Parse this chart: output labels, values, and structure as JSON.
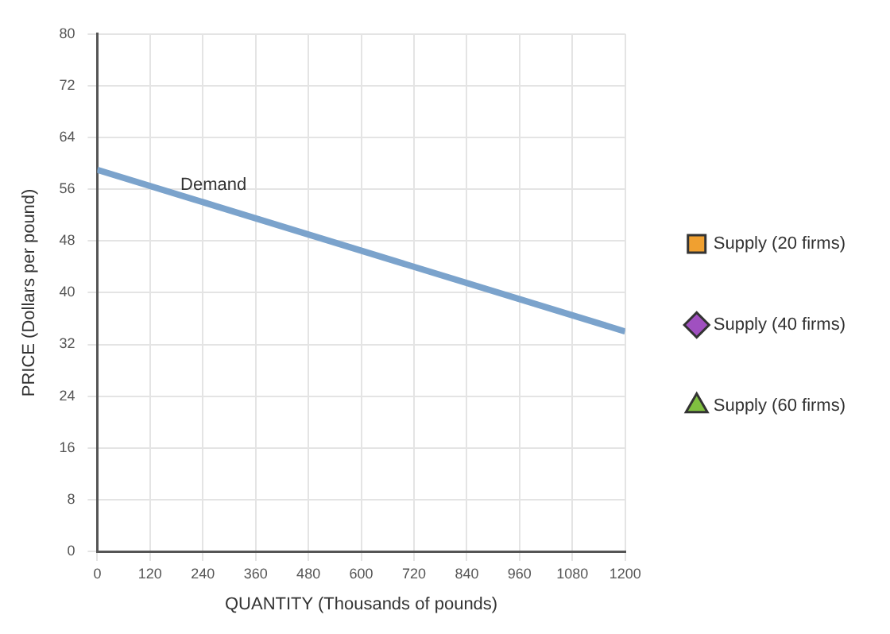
{
  "chart_data": {
    "type": "line",
    "xlabel": "QUANTITY (Thousands of pounds)",
    "ylabel": "PRICE (Dollars per pound)",
    "xlim": [
      0,
      1200
    ],
    "xticks": [
      0,
      120,
      240,
      360,
      480,
      600,
      720,
      840,
      960,
      1080,
      1200
    ],
    "ylim": [
      0,
      80
    ],
    "yticks": [
      0,
      8,
      16,
      24,
      32,
      40,
      48,
      56,
      64,
      72,
      80
    ],
    "grid": true,
    "legend": "right",
    "series": [
      {
        "name": "Demand",
        "color": "#7ba3cc",
        "x": [
          0,
          1200
        ],
        "values": [
          59,
          34
        ],
        "marker": "none"
      },
      {
        "name": "Supply (20 firms)",
        "color": "#f0a030",
        "marker": "square"
      },
      {
        "name": "Supply (40 firms)",
        "color": "#a050c0",
        "marker": "diamond"
      },
      {
        "name": "Supply (60 firms)",
        "color": "#80c040",
        "marker": "triangle"
      }
    ]
  }
}
